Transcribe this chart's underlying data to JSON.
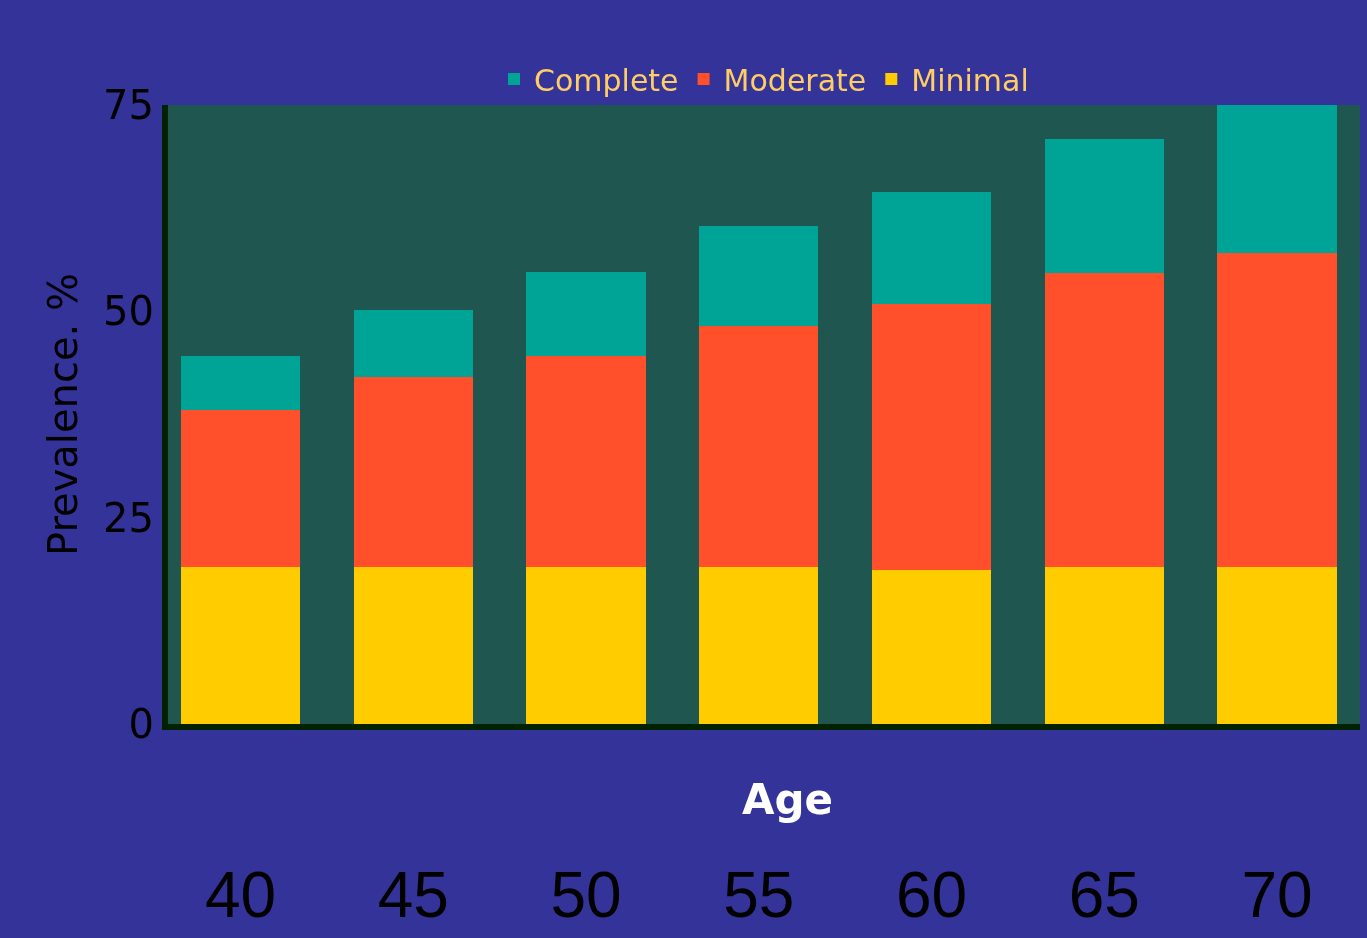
{
  "chart_data": {
    "type": "bar",
    "stacked": true,
    "xlabel": "Age",
    "ylabel": "Prevalence. %",
    "categories": [
      "40",
      "45",
      "50",
      "55",
      "60",
      "65",
      "70"
    ],
    "series": [
      {
        "name": "Minimal",
        "color": "#ffcc00",
        "values": [
          19,
          19,
          19,
          19,
          18.7,
          19,
          19
        ]
      },
      {
        "name": "Moderate",
        "color": "#ff4f2b",
        "values": [
          19.1,
          23.0,
          25.6,
          29.2,
          32.2,
          35.7,
          38.1
        ]
      },
      {
        "name": "Complete",
        "color": "#00a496",
        "values": [
          6.5,
          8.2,
          10.2,
          12.2,
          13.5,
          16.2,
          17.9
        ]
      }
    ],
    "ylim": [
      0,
      75
    ],
    "yticks": [
      0,
      25,
      50,
      75
    ],
    "grid": false,
    "legend": "top"
  }
}
